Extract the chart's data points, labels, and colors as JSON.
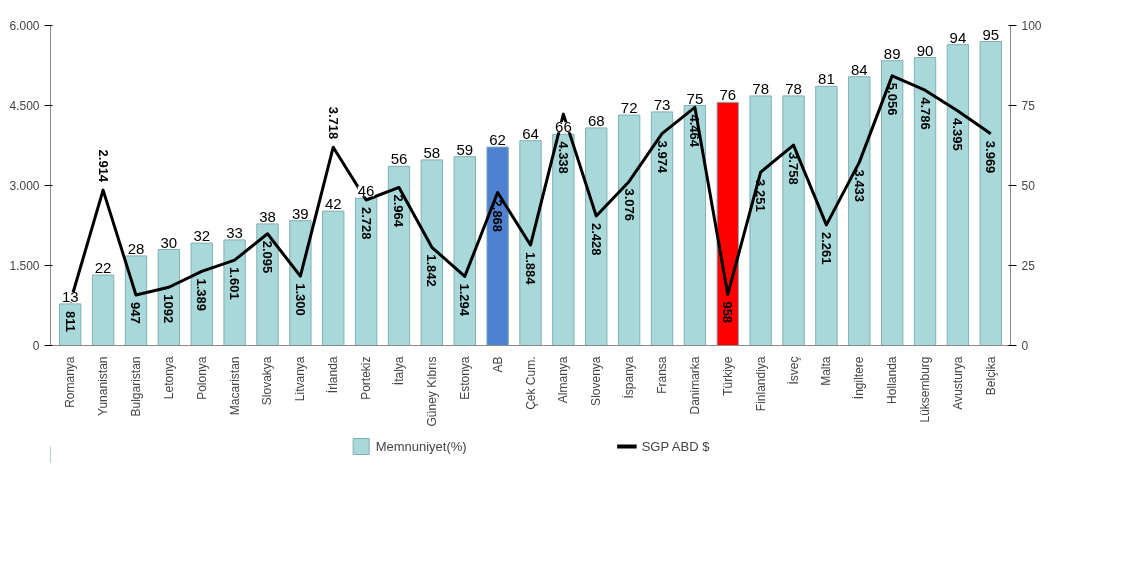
{
  "chart_data": {
    "type": "bar",
    "categories": [
      "Romanya",
      "Yunanistan",
      "Bulgaristan",
      "Letonya",
      "Polonya",
      "Macaristan",
      "Slovakya",
      "Litvanya",
      "İrlanda",
      "Portekiz",
      "İtalya",
      "Güney Kıbrıs",
      "Estonya",
      "AB",
      "Çek Cum.",
      "Almanya",
      "Slovenya",
      "İspanya",
      "Fransa",
      "Danimarka",
      "Türkiye",
      "Finlandiya",
      "İsveç",
      "Malta",
      "İngiltere",
      "Hollanda",
      "Lüksemburg",
      "Avusturya",
      "Belçika"
    ],
    "series": [
      {
        "name": "Memnuniyet(%)",
        "axis": "y2",
        "color": "#a8d8da",
        "colors": [
          "#a8d8da",
          "#a8d8da",
          "#a8d8da",
          "#a8d8da",
          "#a8d8da",
          "#a8d8da",
          "#a8d8da",
          "#a8d8da",
          "#a8d8da",
          "#a8d8da",
          "#a8d8da",
          "#a8d8da",
          "#a8d8da",
          "#4f81d0",
          "#a8d8da",
          "#a8d8da",
          "#a8d8da",
          "#a8d8da",
          "#a8d8da",
          "#a8d8da",
          "#ff0000",
          "#a8d8da",
          "#a8d8da",
          "#a8d8da",
          "#a8d8da",
          "#a8d8da",
          "#a8d8da",
          "#a8d8da",
          "#a8d8da"
        ],
        "values": [
          13,
          22,
          28,
          30,
          32,
          33,
          38,
          39,
          42,
          46,
          56,
          58,
          59,
          62,
          64,
          66,
          68,
          72,
          73,
          75,
          76,
          78,
          78,
          81,
          84,
          89,
          90,
          94,
          95
        ],
        "value_labels": [
          "13",
          "22",
          "28",
          "30",
          "32",
          "33",
          "38",
          "39",
          "42",
          "46",
          "56",
          "58",
          "59",
          "62",
          "64",
          "66",
          "68",
          "72",
          "73",
          "75",
          "76",
          "78",
          "78",
          "81",
          "84",
          "89",
          "90",
          "94",
          "95"
        ]
      },
      {
        "name": "SGP ABD $",
        "type": "line",
        "color": "#000000",
        "values": [
          811,
          2914,
          947,
          1092,
          1389,
          1601,
          2095,
          1300,
          3718,
          2728,
          2964,
          1842,
          1294,
          2868,
          1884,
          4338,
          2428,
          3076,
          3974,
          4464,
          958,
          3251,
          3758,
          2261,
          3433,
          5056,
          4786,
          4395,
          3969
        ],
        "value_labels": [
          "811",
          "2.914",
          "947",
          "1092",
          "1.389",
          "1.601",
          "2.095",
          "1.300",
          "3.718",
          "2.728",
          "2.964",
          "1.842",
          "1.294",
          "2.868",
          "1.884",
          "4.338",
          "2.428",
          "3.076",
          "3.974",
          "4.464",
          "958",
          "3.251",
          "3.758",
          "2.261",
          "3.433",
          "5.056",
          "4.786",
          "4.395",
          "3.969"
        ]
      }
    ],
    "ylim": [
      0,
      6000
    ],
    "yticks": [
      0,
      {
        "value": 1500,
        "label": "1.500"
      },
      {
        "value": 3000,
        "label": "3.000"
      },
      {
        "value": 4500,
        "label": "4.500"
      },
      {
        "value": 6000,
        "label": "6.000"
      }
    ],
    "y2lim": [
      0,
      100
    ],
    "y2ticks": [
      0,
      25,
      50,
      75,
      100
    ],
    "grid": false,
    "legend": "bottom"
  }
}
